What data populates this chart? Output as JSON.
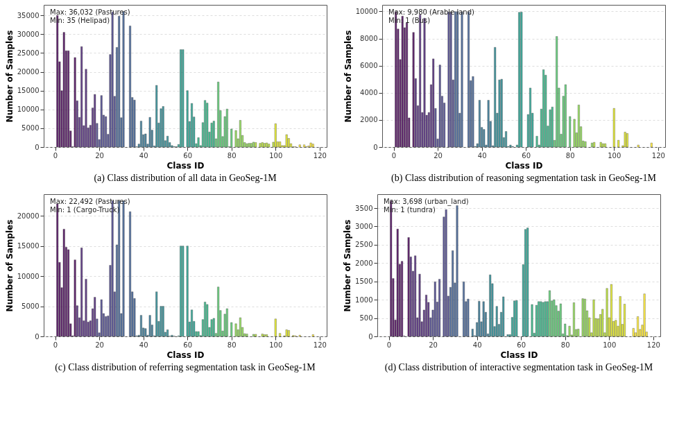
{
  "chart_data": [
    {
      "type": "bar",
      "title": "(a) Class distribution of all data in GeoSeg-1M",
      "xlabel": "Class ID",
      "ylabel": "Number of Samples",
      "annotations": [
        "Max: 36,032 (Pastures)",
        "Min: 35 (Helipad)"
      ],
      "grid": "y",
      "xlim": [
        -5.2,
        123.2
      ],
      "xticks": [
        0,
        20,
        40,
        60,
        80,
        100,
        120
      ],
      "ylim": [
        0,
        37800
      ],
      "yticks": [
        0,
        5000,
        10000,
        15000,
        20000,
        25000,
        30000,
        35000
      ],
      "x": [
        1,
        2,
        3,
        4,
        5,
        6,
        7,
        8,
        9,
        10,
        11,
        12,
        13,
        14,
        15,
        16,
        17,
        18,
        19,
        20,
        21,
        22,
        23,
        24,
        25,
        26,
        27,
        28,
        29,
        30,
        31,
        32,
        33,
        34,
        35,
        36,
        37,
        38,
        39,
        40,
        41,
        42,
        43,
        44,
        45,
        46,
        47,
        48,
        49,
        50,
        51,
        52,
        53,
        54,
        55,
        56,
        57,
        58,
        59,
        60,
        61,
        62,
        63,
        64,
        65,
        66,
        67,
        68,
        69,
        70,
        71,
        72,
        73,
        74,
        75,
        76,
        77,
        78,
        79,
        80,
        81,
        82,
        83,
        84,
        85,
        86,
        87,
        88,
        89,
        90,
        91,
        92,
        93,
        94,
        95,
        96,
        97,
        98,
        99,
        100,
        101,
        102,
        103,
        104,
        105,
        106,
        107,
        108,
        109,
        110,
        111,
        112,
        113,
        114,
        115,
        116,
        117
      ],
      "values": [
        35000,
        22700,
        15000,
        30500,
        25600,
        25600,
        4300,
        100,
        23800,
        12300,
        7900,
        26700,
        5700,
        20700,
        5100,
        5800,
        10400,
        14000,
        6300,
        2000,
        13700,
        8500,
        8100,
        3400,
        24600,
        35900,
        13500,
        26500,
        34800,
        7800,
        36032,
        0,
        0,
        32200,
        13200,
        12500,
        100,
        800,
        6900,
        3300,
        3500,
        800,
        7900,
        4500,
        300,
        16400,
        6400,
        10200,
        10800,
        1700,
        2900,
        1200,
        400,
        150,
        100,
        700,
        25900,
        25900,
        0,
        15000,
        6800,
        11600,
        8000,
        900,
        2500,
        400,
        6500,
        12400,
        11700,
        4000,
        6400,
        6900,
        2200,
        17300,
        9700,
        2800,
        8100,
        10100,
        100,
        4800,
        0,
        4400,
        2200,
        7100,
        3100,
        1200,
        900,
        1000,
        1000,
        1300,
        1200,
        0,
        1000,
        1200,
        1000,
        1100,
        800,
        0,
        1300,
        6200,
        1400,
        1400,
        400,
        400,
        3300,
        2300,
        900,
        100,
        100,
        0,
        600,
        0,
        600,
        100,
        300,
        1100,
        800
      ],
      "colors": [
        "#440154",
        "#440154",
        "#440154",
        "#440154",
        "#440154",
        "#440154",
        "#440154",
        "#440154",
        "#440154",
        "#482173",
        "#482173",
        "#482173",
        "#482173",
        "#482173",
        "#482173",
        "#482173",
        "#482173",
        "#482173",
        "#433e85",
        "#433e85",
        "#433e85",
        "#433e85",
        "#433e85",
        "#433e85",
        "#433e85",
        "#433e85",
        "#433e85",
        "#38588c",
        "#38588c",
        "#38588c",
        "#38588c",
        "#38588c",
        "#38588c",
        "#38588c",
        "#38588c",
        "#38588c",
        "#2d708e",
        "#2d708e",
        "#2d708e",
        "#2d708e",
        "#2d708e",
        "#2d708e",
        "#2d708e",
        "#2d708e",
        "#2d708e",
        "#25858e",
        "#25858e",
        "#25858e",
        "#25858e",
        "#25858e",
        "#25858e",
        "#25858e",
        "#25858e",
        "#25858e",
        "#1e9b8a",
        "#1e9b8a",
        "#1e9b8a",
        "#1e9b8a",
        "#1e9b8a",
        "#1e9b8a",
        "#1e9b8a",
        "#1e9b8a",
        "#1e9b8a",
        "#2ab07f",
        "#2ab07f",
        "#2ab07f",
        "#2ab07f",
        "#2ab07f",
        "#2ab07f",
        "#2ab07f",
        "#2ab07f",
        "#2ab07f",
        "#52c569",
        "#52c569",
        "#52c569",
        "#52c569",
        "#52c569",
        "#52c569",
        "#52c569",
        "#52c569",
        "#52c569",
        "#86d549",
        "#86d549",
        "#86d549",
        "#86d549",
        "#86d549",
        "#86d549",
        "#86d549",
        "#86d549",
        "#86d549",
        "#b5de2b",
        "#b5de2b",
        "#b5de2b",
        "#b5de2b",
        "#b5de2b",
        "#b5de2b",
        "#b5de2b",
        "#b5de2b",
        "#b5de2b",
        "#dde318",
        "#dde318",
        "#dde318",
        "#dde318",
        "#dde318",
        "#dde318",
        "#dde318",
        "#dde318",
        "#dde318",
        "#fde725",
        "#fde725",
        "#fde725",
        "#fde725",
        "#fde725",
        "#fde725",
        "#fde725",
        "#fde725",
        "#fde725"
      ]
    },
    {
      "type": "bar",
      "title": "(b) Class distribution of reasoning segmentation task in GeoSeg-1M",
      "xlabel": "Class ID",
      "ylabel": "Number of Samples",
      "annotations": [
        "Max: 9,980 (Arable land)",
        "Min: 1 (Bus)"
      ],
      "grid": "y",
      "xlim": [
        -5.2,
        123.2
      ],
      "xticks": [
        0,
        20,
        40,
        60,
        80,
        100,
        120
      ],
      "ylim": [
        0,
        10480
      ],
      "yticks": [
        0,
        2000,
        4000,
        6000,
        8000,
        10000
      ],
      "x": [
        1,
        2,
        3,
        4,
        5,
        6,
        7,
        8,
        9,
        10,
        11,
        12,
        13,
        14,
        15,
        16,
        17,
        18,
        19,
        20,
        21,
        22,
        23,
        24,
        25,
        26,
        27,
        28,
        29,
        30,
        31,
        32,
        33,
        34,
        35,
        36,
        37,
        38,
        39,
        40,
        41,
        42,
        43,
        44,
        45,
        46,
        47,
        48,
        49,
        50,
        51,
        52,
        53,
        54,
        55,
        56,
        57,
        58,
        59,
        60,
        61,
        62,
        63,
        64,
        65,
        66,
        67,
        68,
        69,
        70,
        71,
        72,
        73,
        74,
        75,
        76,
        77,
        78,
        79,
        80,
        81,
        82,
        83,
        84,
        85,
        86,
        87,
        88,
        89,
        90,
        91,
        92,
        93,
        94,
        95,
        96,
        97,
        98,
        99,
        100,
        101,
        102,
        103,
        104,
        105,
        106,
        107,
        108,
        109,
        110,
        111,
        112,
        113,
        114,
        115,
        116,
        117
      ],
      "values": [
        9980,
        8700,
        6450,
        9650,
        8800,
        9150,
        2150,
        0,
        8450,
        5050,
        3050,
        9750,
        2550,
        9500,
        2350,
        2550,
        4600,
        6500,
        2850,
        600,
        6050,
        3750,
        3250,
        0,
        9950,
        9950,
        4950,
        9980,
        9980,
        2500,
        9960,
        0,
        0,
        9960,
        4900,
        5200,
        50,
        250,
        3450,
        1450,
        1300,
        150,
        3450,
        1900,
        100,
        7350,
        2500,
        4950,
        5000,
        700,
        1150,
        50,
        150,
        50,
        0,
        150,
        9930,
        9950,
        0,
        0,
        2400,
        4350,
        2500,
        0,
        800,
        150,
        2800,
        5700,
        5300,
        1550,
        2750,
        2950,
        500,
        8150,
        4350,
        950,
        3750,
        4600,
        0,
        2250,
        0,
        2050,
        1050,
        3100,
        1500,
        450,
        400,
        0,
        0,
        300,
        350,
        0,
        0,
        350,
        250,
        250,
        0,
        0,
        0,
        2850,
        0,
        500,
        0,
        100,
        1100,
        1000,
        0,
        0,
        0,
        0,
        150,
        0,
        0,
        0,
        0,
        0,
        300
      ],
      "colors": [
        "#440154",
        "#440154",
        "#440154",
        "#440154",
        "#440154",
        "#440154",
        "#440154",
        "#440154",
        "#440154",
        "#482173",
        "#482173",
        "#482173",
        "#482173",
        "#482173",
        "#482173",
        "#482173",
        "#482173",
        "#482173",
        "#433e85",
        "#433e85",
        "#433e85",
        "#433e85",
        "#433e85",
        "#433e85",
        "#433e85",
        "#433e85",
        "#433e85",
        "#38588c",
        "#38588c",
        "#38588c",
        "#38588c",
        "#38588c",
        "#38588c",
        "#38588c",
        "#38588c",
        "#38588c",
        "#2d708e",
        "#2d708e",
        "#2d708e",
        "#2d708e",
        "#2d708e",
        "#2d708e",
        "#2d708e",
        "#2d708e",
        "#2d708e",
        "#25858e",
        "#25858e",
        "#25858e",
        "#25858e",
        "#25858e",
        "#25858e",
        "#25858e",
        "#25858e",
        "#25858e",
        "#1e9b8a",
        "#1e9b8a",
        "#1e9b8a",
        "#1e9b8a",
        "#1e9b8a",
        "#1e9b8a",
        "#1e9b8a",
        "#1e9b8a",
        "#1e9b8a",
        "#2ab07f",
        "#2ab07f",
        "#2ab07f",
        "#2ab07f",
        "#2ab07f",
        "#2ab07f",
        "#2ab07f",
        "#2ab07f",
        "#2ab07f",
        "#52c569",
        "#52c569",
        "#52c569",
        "#52c569",
        "#52c569",
        "#52c569",
        "#52c569",
        "#52c569",
        "#52c569",
        "#86d549",
        "#86d549",
        "#86d549",
        "#86d549",
        "#86d549",
        "#86d549",
        "#86d549",
        "#86d549",
        "#86d549",
        "#b5de2b",
        "#b5de2b",
        "#b5de2b",
        "#b5de2b",
        "#b5de2b",
        "#b5de2b",
        "#b5de2b",
        "#b5de2b",
        "#b5de2b",
        "#dde318",
        "#dde318",
        "#dde318",
        "#dde318",
        "#dde318",
        "#dde318",
        "#dde318",
        "#dde318",
        "#dde318",
        "#fde725",
        "#fde725",
        "#fde725",
        "#fde725",
        "#fde725",
        "#fde725",
        "#fde725",
        "#fde725",
        "#fde725"
      ]
    },
    {
      "type": "bar",
      "title": "(c) Class distribution of referring segmentation task in GeoSeg-1M",
      "xlabel": "Class ID",
      "ylabel": "Number of Samples",
      "annotations": [
        "Max: 22,492 (Pastures)",
        "Min: 1 (Cargo-Truck)"
      ],
      "grid": "y",
      "xlim": [
        -5.2,
        123.2
      ],
      "xticks": [
        0,
        20,
        40,
        60,
        80,
        100,
        120
      ],
      "ylim": [
        0,
        23600
      ],
      "yticks": [
        0,
        5000,
        10000,
        15000,
        20000
      ],
      "x": [
        1,
        2,
        3,
        4,
        5,
        6,
        7,
        8,
        9,
        10,
        11,
        12,
        13,
        14,
        15,
        16,
        17,
        18,
        19,
        20,
        21,
        22,
        23,
        24,
        25,
        26,
        27,
        28,
        29,
        30,
        31,
        32,
        33,
        34,
        35,
        36,
        37,
        38,
        39,
        40,
        41,
        42,
        43,
        44,
        45,
        46,
        47,
        48,
        49,
        50,
        51,
        52,
        53,
        54,
        55,
        56,
        57,
        58,
        59,
        60,
        61,
        62,
        63,
        64,
        65,
        66,
        67,
        68,
        69,
        70,
        71,
        72,
        73,
        74,
        75,
        76,
        77,
        78,
        79,
        80,
        81,
        82,
        83,
        84,
        85,
        86,
        87,
        88,
        89,
        90,
        91,
        92,
        93,
        94,
        95,
        96,
        97,
        98,
        99,
        100,
        101,
        102,
        103,
        104,
        105,
        106,
        107,
        108,
        109,
        110,
        111,
        112,
        113,
        114,
        115,
        116,
        117
      ],
      "values": [
        22000,
        12300,
        8100,
        17800,
        14800,
        14400,
        2100,
        100,
        12700,
        5100,
        3100,
        14700,
        2600,
        9500,
        2400,
        2600,
        4600,
        6500,
        2900,
        600,
        6100,
        3800,
        3300,
        3400,
        11800,
        22492,
        7400,
        15200,
        22492,
        3800,
        22492,
        0,
        0,
        20700,
        7400,
        6300,
        100,
        200,
        3500,
        1400,
        1300,
        200,
        3500,
        1900,
        100,
        7400,
        2500,
        5000,
        5000,
        700,
        1100,
        50,
        200,
        50,
        0,
        100,
        15000,
        15000,
        0,
        15000,
        2400,
        4400,
        2500,
        800,
        800,
        150,
        2800,
        5700,
        5300,
        1500,
        2800,
        3000,
        500,
        8200,
        4300,
        900,
        3700,
        4600,
        0,
        2300,
        0,
        2100,
        1100,
        3100,
        1500,
        450,
        400,
        0,
        0,
        350,
        350,
        0,
        0,
        400,
        300,
        300,
        0,
        0,
        0,
        2900,
        0,
        500,
        0,
        100,
        1100,
        1000,
        0,
        150,
        100,
        0,
        200,
        0,
        0,
        0,
        0,
        0,
        300
      ],
      "colors": [
        "#440154",
        "#440154",
        "#440154",
        "#440154",
        "#440154",
        "#440154",
        "#440154",
        "#440154",
        "#440154",
        "#482173",
        "#482173",
        "#482173",
        "#482173",
        "#482173",
        "#482173",
        "#482173",
        "#482173",
        "#482173",
        "#433e85",
        "#433e85",
        "#433e85",
        "#433e85",
        "#433e85",
        "#433e85",
        "#433e85",
        "#433e85",
        "#433e85",
        "#38588c",
        "#38588c",
        "#38588c",
        "#38588c",
        "#38588c",
        "#38588c",
        "#38588c",
        "#38588c",
        "#38588c",
        "#2d708e",
        "#2d708e",
        "#2d708e",
        "#2d708e",
        "#2d708e",
        "#2d708e",
        "#2d708e",
        "#2d708e",
        "#2d708e",
        "#25858e",
        "#25858e",
        "#25858e",
        "#25858e",
        "#25858e",
        "#25858e",
        "#25858e",
        "#25858e",
        "#25858e",
        "#1e9b8a",
        "#1e9b8a",
        "#1e9b8a",
        "#1e9b8a",
        "#1e9b8a",
        "#1e9b8a",
        "#1e9b8a",
        "#1e9b8a",
        "#1e9b8a",
        "#2ab07f",
        "#2ab07f",
        "#2ab07f",
        "#2ab07f",
        "#2ab07f",
        "#2ab07f",
        "#2ab07f",
        "#2ab07f",
        "#2ab07f",
        "#52c569",
        "#52c569",
        "#52c569",
        "#52c569",
        "#52c569",
        "#52c569",
        "#52c569",
        "#52c569",
        "#52c569",
        "#86d549",
        "#86d549",
        "#86d549",
        "#86d549",
        "#86d549",
        "#86d549",
        "#86d549",
        "#86d549",
        "#86d549",
        "#b5de2b",
        "#b5de2b",
        "#b5de2b",
        "#b5de2b",
        "#b5de2b",
        "#b5de2b",
        "#b5de2b",
        "#b5de2b",
        "#b5de2b",
        "#dde318",
        "#dde318",
        "#dde318",
        "#dde318",
        "#dde318",
        "#dde318",
        "#dde318",
        "#dde318",
        "#dde318",
        "#fde725",
        "#fde725",
        "#fde725",
        "#fde725",
        "#fde725",
        "#fde725",
        "#fde725",
        "#fde725",
        "#fde725"
      ]
    },
    {
      "type": "bar",
      "title": "(d) Class distribution of interactive segmentation task in GeoSeg-1M",
      "xlabel": "Class ID",
      "ylabel": "Number of Samples",
      "annotations": [
        "Max: 3,698 (urban_land)",
        "Min: 1 (tundra)"
      ],
      "grid": "y",
      "xlim": [
        -5.2,
        123.2
      ],
      "xticks": [
        0,
        20,
        40,
        60,
        80,
        100,
        120
      ],
      "ylim": [
        0,
        3880
      ],
      "yticks": [
        0,
        500,
        1000,
        1500,
        2000,
        2500,
        3000,
        3500
      ],
      "x": [
        1,
        2,
        3,
        4,
        5,
        6,
        7,
        8,
        9,
        10,
        11,
        12,
        13,
        14,
        15,
        16,
        17,
        18,
        19,
        20,
        21,
        22,
        23,
        24,
        25,
        26,
        27,
        28,
        29,
        30,
        31,
        32,
        33,
        34,
        35,
        36,
        37,
        38,
        39,
        40,
        41,
        42,
        43,
        44,
        45,
        46,
        47,
        48,
        49,
        50,
        51,
        52,
        53,
        54,
        55,
        56,
        57,
        58,
        59,
        60,
        61,
        62,
        63,
        64,
        65,
        66,
        67,
        68,
        69,
        70,
        71,
        72,
        73,
        74,
        75,
        76,
        77,
        78,
        79,
        80,
        81,
        82,
        83,
        84,
        85,
        86,
        87,
        88,
        89,
        90,
        91,
        92,
        93,
        94,
        95,
        96,
        97,
        98,
        99,
        100,
        101,
        102,
        103,
        104,
        105,
        106,
        107,
        108,
        109,
        110,
        111,
        112,
        113,
        114,
        115,
        116,
        117
      ],
      "values": [
        3698,
        1580,
        450,
        2930,
        1970,
        2050,
        10,
        0,
        2700,
        2170,
        1780,
        2200,
        510,
        1700,
        400,
        720,
        1130,
        930,
        510,
        720,
        1490,
        940,
        1560,
        0,
        3260,
        3460,
        1100,
        1340,
        2340,
        1460,
        3570,
        0,
        0,
        1490,
        950,
        1020,
        0,
        200,
        20,
        380,
        960,
        400,
        950,
        660,
        70,
        1680,
        1440,
        270,
        820,
        330,
        660,
        1080,
        0,
        50,
        50,
        520,
        970,
        980,
        0,
        0,
        1960,
        2920,
        2960,
        0,
        870,
        90,
        850,
        950,
        950,
        930,
        950,
        950,
        1250,
        970,
        1000,
        840,
        690,
        890,
        70,
        340,
        20,
        280,
        40,
        920,
        190,
        200,
        0,
        1030,
        1020,
        700,
        510,
        100,
        1000,
        490,
        480,
        600,
        740,
        100,
        1310,
        510,
        1420,
        410,
        440,
        280,
        1090,
        330,
        880,
        0,
        0,
        0,
        220,
        100,
        540,
        190,
        310,
        1160,
        120
      ],
      "colors": [
        "#440154",
        "#440154",
        "#440154",
        "#440154",
        "#440154",
        "#440154",
        "#440154",
        "#440154",
        "#440154",
        "#482173",
        "#482173",
        "#482173",
        "#482173",
        "#482173",
        "#482173",
        "#482173",
        "#482173",
        "#482173",
        "#433e85",
        "#433e85",
        "#433e85",
        "#433e85",
        "#433e85",
        "#433e85",
        "#433e85",
        "#433e85",
        "#433e85",
        "#38588c",
        "#38588c",
        "#38588c",
        "#38588c",
        "#38588c",
        "#38588c",
        "#38588c",
        "#38588c",
        "#38588c",
        "#2d708e",
        "#2d708e",
        "#2d708e",
        "#2d708e",
        "#2d708e",
        "#2d708e",
        "#2d708e",
        "#2d708e",
        "#2d708e",
        "#25858e",
        "#25858e",
        "#25858e",
        "#25858e",
        "#25858e",
        "#25858e",
        "#25858e",
        "#25858e",
        "#25858e",
        "#1e9b8a",
        "#1e9b8a",
        "#1e9b8a",
        "#1e9b8a",
        "#1e9b8a",
        "#1e9b8a",
        "#1e9b8a",
        "#1e9b8a",
        "#1e9b8a",
        "#2ab07f",
        "#2ab07f",
        "#2ab07f",
        "#2ab07f",
        "#2ab07f",
        "#2ab07f",
        "#2ab07f",
        "#2ab07f",
        "#2ab07f",
        "#52c569",
        "#52c569",
        "#52c569",
        "#52c569",
        "#52c569",
        "#52c569",
        "#52c569",
        "#52c569",
        "#52c569",
        "#86d549",
        "#86d549",
        "#86d549",
        "#86d549",
        "#86d549",
        "#86d549",
        "#86d549",
        "#86d549",
        "#86d549",
        "#b5de2b",
        "#b5de2b",
        "#b5de2b",
        "#b5de2b",
        "#b5de2b",
        "#b5de2b",
        "#b5de2b",
        "#b5de2b",
        "#b5de2b",
        "#dde318",
        "#dde318",
        "#dde318",
        "#dde318",
        "#dde318",
        "#dde318",
        "#dde318",
        "#dde318",
        "#dde318",
        "#fde725",
        "#fde725",
        "#fde725",
        "#fde725",
        "#fde725",
        "#fde725",
        "#fde725",
        "#fde725",
        "#fde725"
      ]
    }
  ]
}
